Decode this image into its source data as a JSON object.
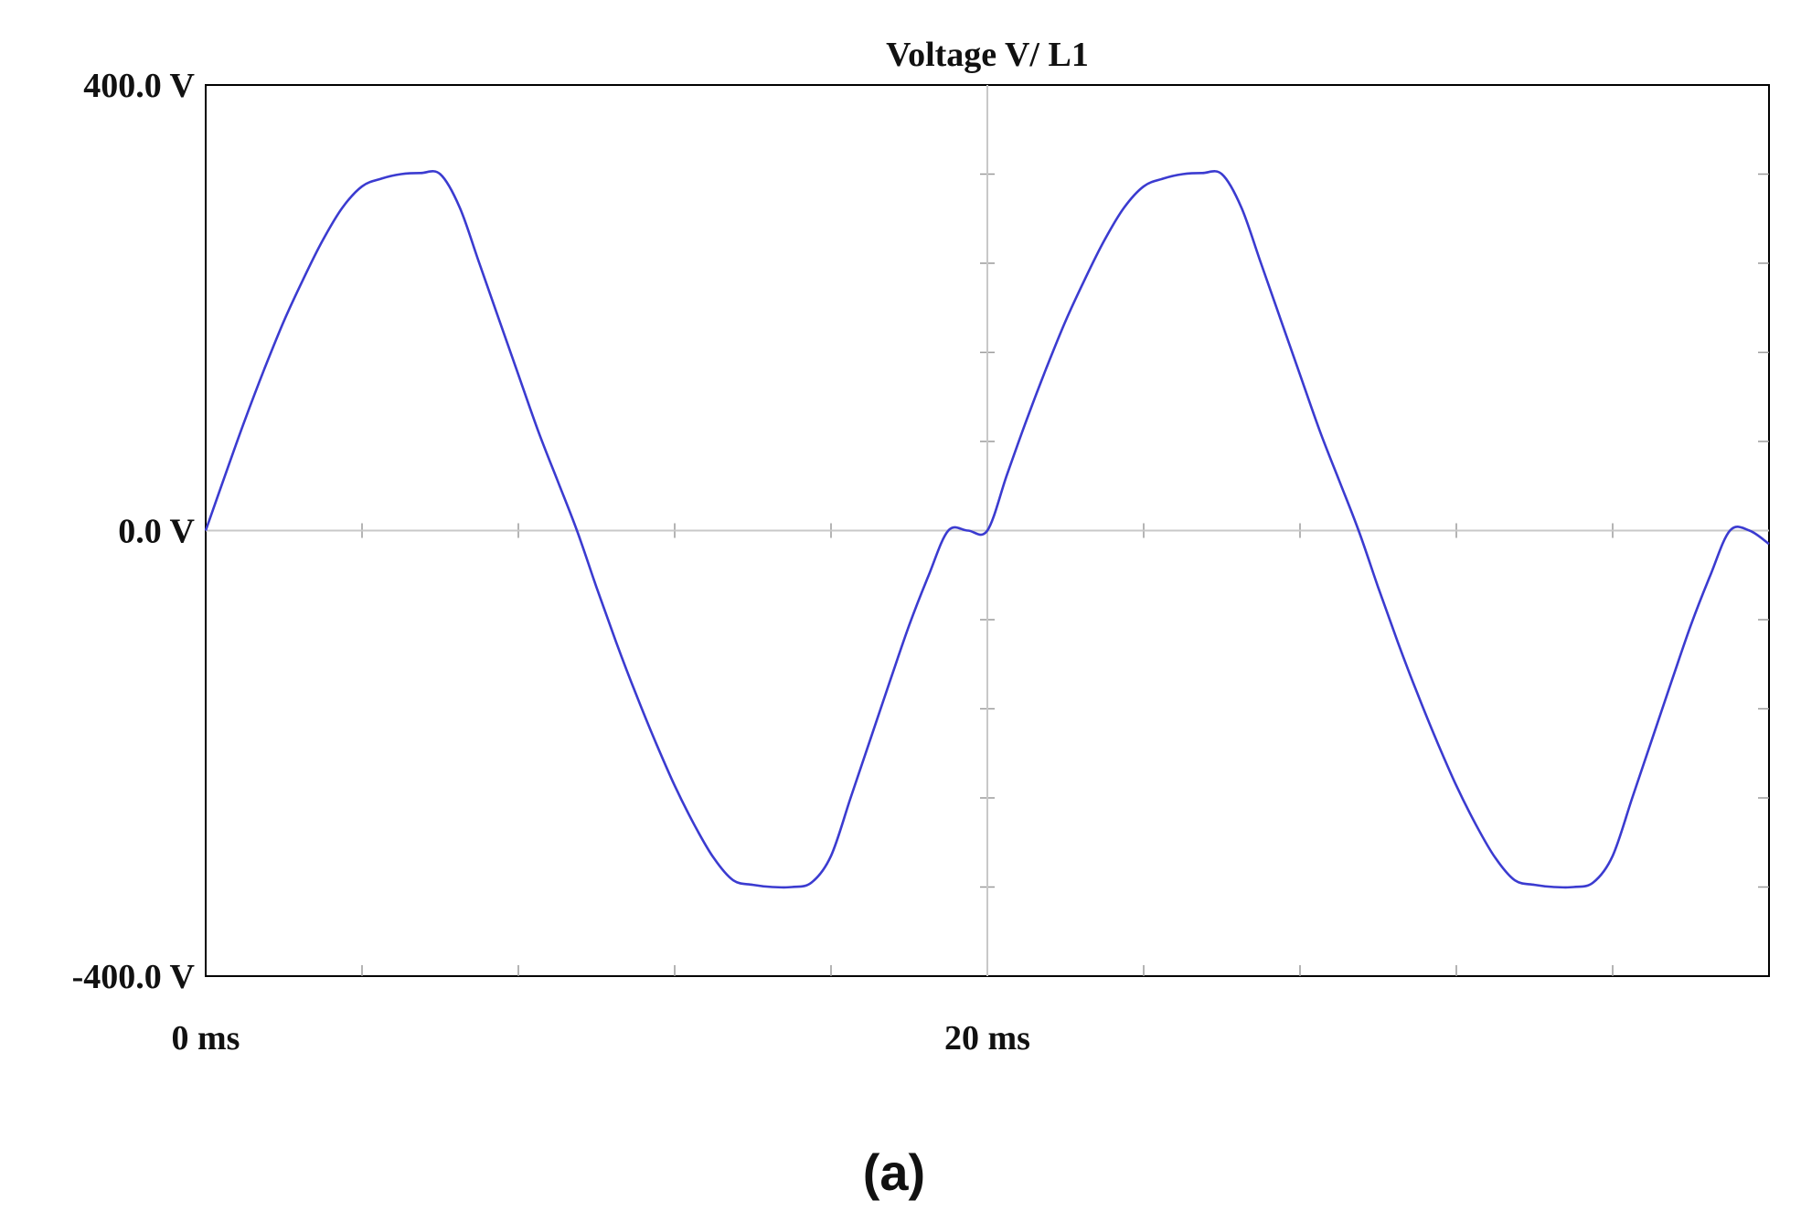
{
  "caption": "(a)",
  "chart_data": {
    "type": "line",
    "title": "Voltage V/ L1",
    "xlabel": "",
    "ylabel": "",
    "xlim": [
      0,
      40
    ],
    "ylim": [
      -400,
      400
    ],
    "x_ticks": [
      {
        "value": 0,
        "label": "0 ms"
      },
      {
        "value": 20,
        "label": "20 ms"
      }
    ],
    "y_ticks": [
      {
        "value": 400,
        "label": "400.0 V"
      },
      {
        "value": 0,
        "label": "0.0 V"
      },
      {
        "value": -400,
        "label": "-400.0 V"
      }
    ],
    "grid": {
      "major_x": [
        20
      ],
      "major_y": [
        0
      ],
      "minor_x_step": 4,
      "minor_y_step": 80
    },
    "legend": "none",
    "series": [
      {
        "color": "#3b3bd0",
        "x": [
          0,
          0.5,
          1,
          1.5,
          2,
          2.5,
          3,
          3.5,
          4,
          4.5,
          5,
          5.5,
          6,
          6.5,
          7,
          7.5,
          8,
          8.5,
          9,
          9.5,
          10,
          10.5,
          11,
          11.5,
          12,
          12.5,
          13,
          13.5,
          14,
          14.5,
          15,
          15.5,
          16,
          16.5,
          17,
          17.5,
          18,
          18.5,
          19,
          19.5,
          20,
          20.5,
          21,
          21.5,
          22,
          22.5,
          23,
          23.5,
          24,
          24.5,
          25,
          25.5,
          26,
          26.5,
          27,
          27.5,
          28,
          28.5,
          29,
          29.5,
          30,
          30.5,
          31,
          31.5,
          32,
          32.5,
          33,
          33.5,
          34,
          34.5,
          35,
          35.5,
          36,
          36.5,
          37,
          37.5,
          38,
          38.5,
          39,
          39.5,
          40
        ],
        "y": [
          0,
          50,
          99,
          145,
          188,
          226,
          261,
          290,
          309,
          316,
          320,
          321,
          320,
          290,
          240,
          190,
          140,
          90,
          45,
          0,
          -51,
          -100,
          -146,
          -189,
          -229,
          -264,
          -294,
          -314,
          -318,
          -320,
          -320,
          -316,
          -292,
          -240,
          -188,
          -136,
          -85,
          -40,
          0,
          0,
          0,
          50,
          99,
          145,
          188,
          226,
          261,
          290,
          309,
          316,
          320,
          321,
          320,
          290,
          240,
          190,
          140,
          90,
          45,
          0,
          -51,
          -100,
          -146,
          -189,
          -229,
          -264,
          -294,
          -314,
          -318,
          -320,
          -320,
          -316,
          -292,
          -240,
          -188,
          -136,
          -85,
          -40,
          0,
          0,
          -12
        ]
      }
    ]
  }
}
